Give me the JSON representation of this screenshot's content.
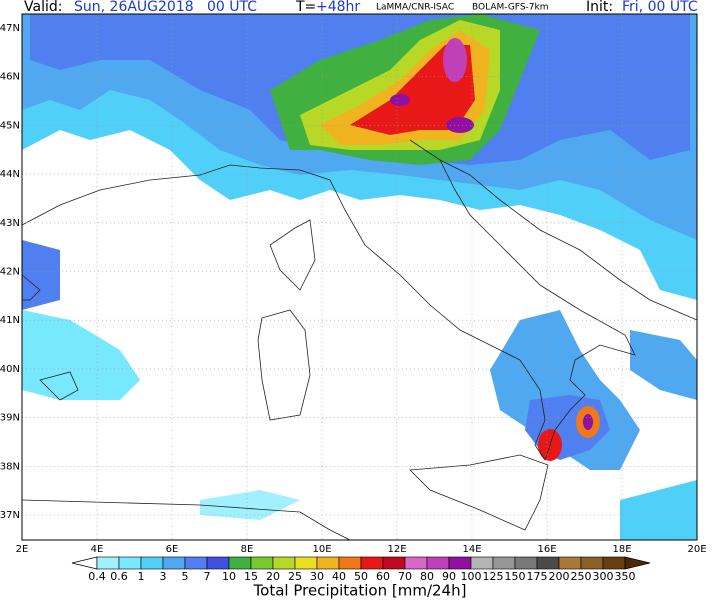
{
  "header": {
    "valid_label": "Valid:",
    "valid_value": "Sun, 26AUG2018   00 UTC",
    "lead_label": "T=",
    "lead_value": "+48hr",
    "source": "LaMMA/CNR-ISAC",
    "model": "BOLAM-GFS-7km",
    "init_label": "Init:",
    "init_value": "Fri, 00 UTC"
  },
  "map": {
    "lat_labels": [
      "47N",
      "46N",
      "45N",
      "44N",
      "43N",
      "42N",
      "41N",
      "40N",
      "39N",
      "38N",
      "37N"
    ],
    "lon_labels": [
      "2E",
      "4E",
      "6E",
      "8E",
      "10E",
      "12E",
      "14E",
      "16E",
      "18E",
      "20E"
    ]
  },
  "colorbar": {
    "title": "Total Precipitation [mm/24h]",
    "labels": [
      0.4,
      0.6,
      1,
      3,
      5,
      7,
      10,
      15,
      20,
      25,
      30,
      40,
      50,
      60,
      70,
      80,
      90,
      100,
      125,
      150,
      175,
      200,
      250,
      300,
      350
    ],
    "colors": [
      "#a0f0ff",
      "#78e8ff",
      "#50d0f8",
      "#50a8f0",
      "#5080f0",
      "#4050e0",
      "#40b040",
      "#78c830",
      "#b8d828",
      "#e8e020",
      "#f0b420",
      "#f07818",
      "#e81818",
      "#c00820",
      "#d868c8",
      "#c040b8",
      "#9010a0",
      "#b4b4b4",
      "#969696",
      "#787878",
      "#4a4a4a",
      "#a87838",
      "#886028",
      "#684010"
    ],
    "under_color": "#ffffff",
    "over_color": "#4a2808"
  }
}
